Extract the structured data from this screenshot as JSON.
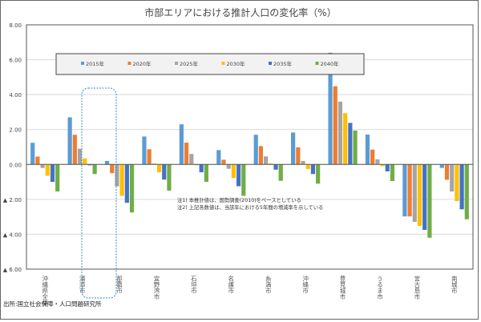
{
  "chart_data": {
    "type": "bar",
    "title": "市部エリアにおける推計人口の変化率（%）",
    "xlabel": "",
    "ylabel": "",
    "ylim": [
      -6,
      8
    ],
    "yticks": [
      8,
      6,
      4,
      2,
      0,
      -2,
      -4,
      -6
    ],
    "ytick_labels": [
      "8.00",
      "6.00",
      "4.00",
      "2.00",
      "0.00",
      "▲ 2.00",
      "▲ 4.00",
      "▲ 6.00"
    ],
    "grid": true,
    "legend_position": "top",
    "categories": [
      "沖縄県全体",
      "浦添市",
      "那覇市",
      "宜野湾市",
      "石垣市",
      "名護市",
      "糸満市",
      "沖縄市",
      "豊見城市",
      "うるま市",
      "宮古島市",
      "南城市"
    ],
    "series": [
      {
        "name": "2015年",
        "color": "#5B9BD5",
        "values": [
          1.24,
          2.7,
          0.2,
          1.6,
          2.3,
          0.82,
          1.7,
          1.83,
          6.4,
          1.71,
          -2.98,
          -0.2
        ]
      },
      {
        "name": "2020年",
        "color": "#ED7D31",
        "values": [
          0.45,
          1.7,
          -0.5,
          0.87,
          1.25,
          0.27,
          1.05,
          0.98,
          4.48,
          0.85,
          -2.98,
          -0.88
        ]
      },
      {
        "name": "2025年",
        "color": "#A5A5A5",
        "values": [
          -0.2,
          0.9,
          -1.25,
          0.05,
          0.6,
          -0.25,
          0.46,
          0.2,
          3.6,
          0.29,
          -3.29,
          -1.55
        ]
      },
      {
        "name": "2030年",
        "color": "#FFC000",
        "values": [
          -0.65,
          0.35,
          -1.8,
          -0.45,
          -0.05,
          -0.78,
          0.06,
          -0.26,
          2.94,
          -0.1,
          -3.52,
          -2.1
        ]
      },
      {
        "name": "2035年",
        "color": "#4472C4",
        "values": [
          -1.0,
          -0.05,
          -2.2,
          -0.87,
          -0.45,
          -1.25,
          -0.3,
          -0.55,
          2.38,
          -0.4,
          -3.75,
          -2.57
        ]
      },
      {
        "name": "2040年",
        "color": "#70AD47",
        "values": [
          -1.55,
          -0.55,
          -2.75,
          -1.5,
          -1.0,
          -1.8,
          -0.94,
          -1.1,
          1.94,
          -0.95,
          -4.2,
          -3.14
        ]
      }
    ],
    "annotations": [
      "注1) 本推計値は、国勢調査(2010)をベースとしている",
      "注2) 上記各数値は、当該年における5年間の増減率を示している"
    ],
    "highlight_category": "浦添市"
  },
  "source": "出所:国立社会保障・人口問題研究所"
}
